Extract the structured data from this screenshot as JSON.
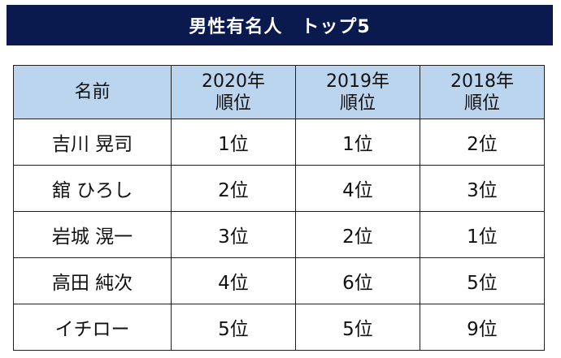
{
  "title": "男性有名人　トップ5",
  "table": {
    "headers": [
      {
        "line1": "名前",
        "line2": ""
      },
      {
        "line1": "2020年",
        "line2": "順位"
      },
      {
        "line1": "2019年",
        "line2": "順位"
      },
      {
        "line1": "2018年",
        "line2": "順位"
      }
    ],
    "rows": [
      {
        "name": "吉川 晃司",
        "y2020": "1位",
        "y2019": "1位",
        "y2018": "2位"
      },
      {
        "name": "舘 ひろし",
        "y2020": "2位",
        "y2019": "4位",
        "y2018": "3位"
      },
      {
        "name": "岩城 滉一",
        "y2020": "3位",
        "y2019": "2位",
        "y2018": "1位"
      },
      {
        "name": "高田 純次",
        "y2020": "4位",
        "y2019": "6位",
        "y2018": "5位"
      },
      {
        "name": "イチロー",
        "y2020": "5位",
        "y2019": "5位",
        "y2018": "9位"
      }
    ]
  },
  "colors": {
    "title_bg": "#0a1a4f",
    "title_text": "#ffffff",
    "header_bg": "#bcd5ee",
    "border": "#1f1f1f"
  }
}
